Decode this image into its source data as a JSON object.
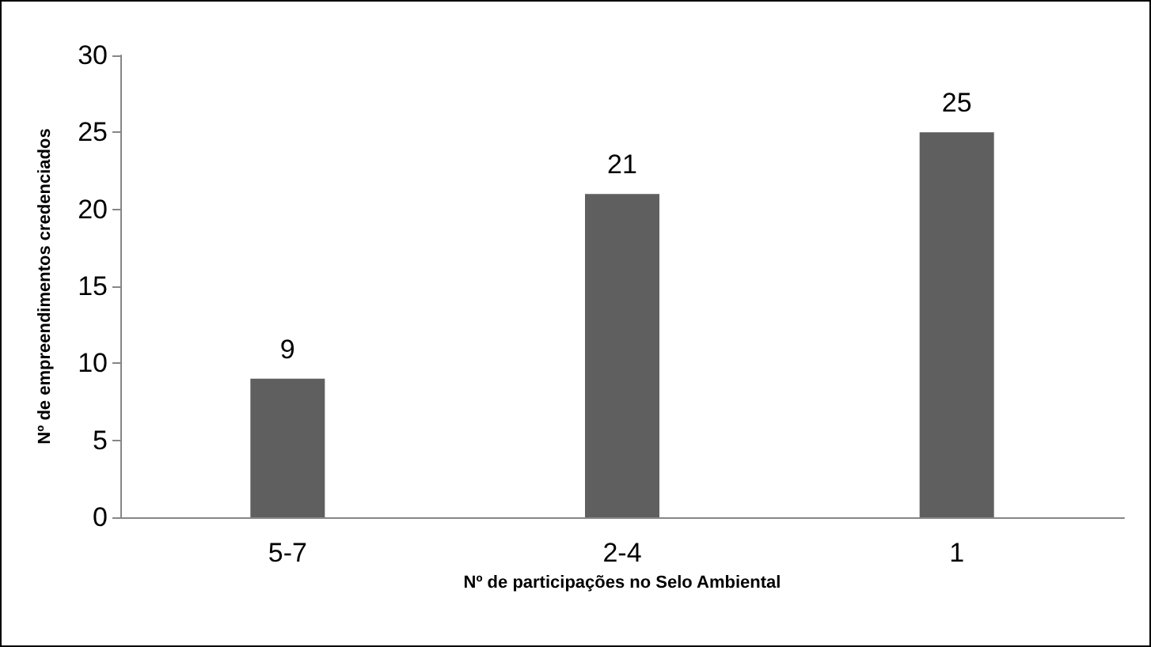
{
  "chart_data": {
    "type": "bar",
    "xlabel": "Nº de participações no Selo Ambiental",
    "ylabel": "Nº de empreendimentos credenciados",
    "categories": [
      "5-7",
      "2-4",
      "1"
    ],
    "values": [
      9,
      21,
      25
    ],
    "color": "#5f5f5f",
    "ylim": [
      0,
      30
    ],
    "yticks": [
      0,
      5,
      10,
      15,
      20,
      25,
      30
    ],
    "grid": false,
    "data_labels": true
  }
}
